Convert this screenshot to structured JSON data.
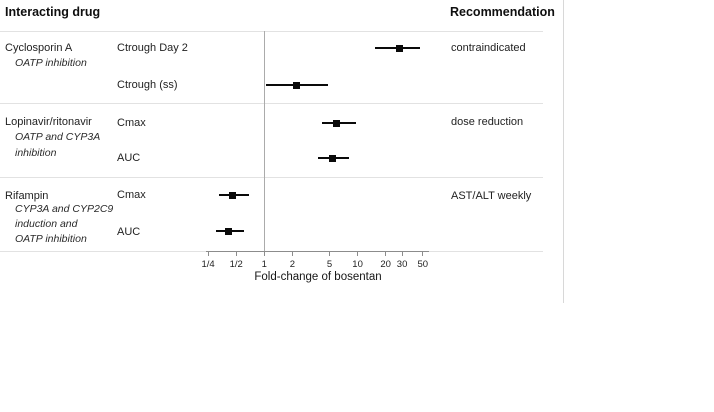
{
  "header": {
    "left": "Interacting drug",
    "right": "Recommendation"
  },
  "groups": [
    {
      "drug": "Cyclosporin A",
      "mechanism_lines": [
        "OATP inhibition"
      ],
      "recommendation": "contraindicated"
    },
    {
      "drug": "Lopinavir/ritonavir",
      "mechanism_lines": [
        "OATP and CYP3A",
        "inhibition"
      ],
      "recommendation": "dose reduction"
    },
    {
      "drug": "Rifampin",
      "mechanism_lines": [
        "CYP3A and CYP2C9",
        "induction and",
        "OATP inhibition"
      ],
      "recommendation": "AST/ALT weekly"
    }
  ],
  "chart_data": {
    "type": "scatter",
    "subtype": "forest-plot",
    "title": "",
    "xlabel": "Fold-change of bosentan",
    "x_scale": "log",
    "xlim": [
      0.22,
      58
    ],
    "reference_line_x": 1,
    "grid": false,
    "x_ticks": [
      {
        "value": 0.25,
        "label": "1/4"
      },
      {
        "value": 0.5,
        "label": "1/2"
      },
      {
        "value": 1,
        "label": "1"
      },
      {
        "value": 2,
        "label": "2"
      },
      {
        "value": 5,
        "label": "5"
      },
      {
        "value": 10,
        "label": "10"
      },
      {
        "value": 20,
        "label": "20"
      },
      {
        "value": 30,
        "label": "30"
      },
      {
        "value": 50,
        "label": "50"
      }
    ],
    "points": [
      {
        "group": "Cyclosporin A",
        "param": "Ctrough Day 2",
        "estimate": 28,
        "ci_low": 15.2,
        "ci_high": 47
      },
      {
        "group": "Cyclosporin A",
        "param": "Ctrough (ss)",
        "estimate": 2.2,
        "ci_low": 1.05,
        "ci_high": 4.8
      },
      {
        "group": "Lopinavir/ritonavir",
        "param": "Cmax",
        "estimate": 6.0,
        "ci_low": 4.1,
        "ci_high": 9.6
      },
      {
        "group": "Lopinavir/ritonavir",
        "param": "AUC",
        "estimate": 5.4,
        "ci_low": 3.8,
        "ci_high": 8.0
      },
      {
        "group": "Rifampin",
        "param": "Cmax",
        "estimate": 0.46,
        "ci_low": 0.33,
        "ci_high": 0.68
      },
      {
        "group": "Rifampin",
        "param": "AUC",
        "estimate": 0.41,
        "ci_low": 0.3,
        "ci_high": 0.6
      }
    ],
    "marker_color": "#000000",
    "separator_color": "#e2e2e2"
  }
}
